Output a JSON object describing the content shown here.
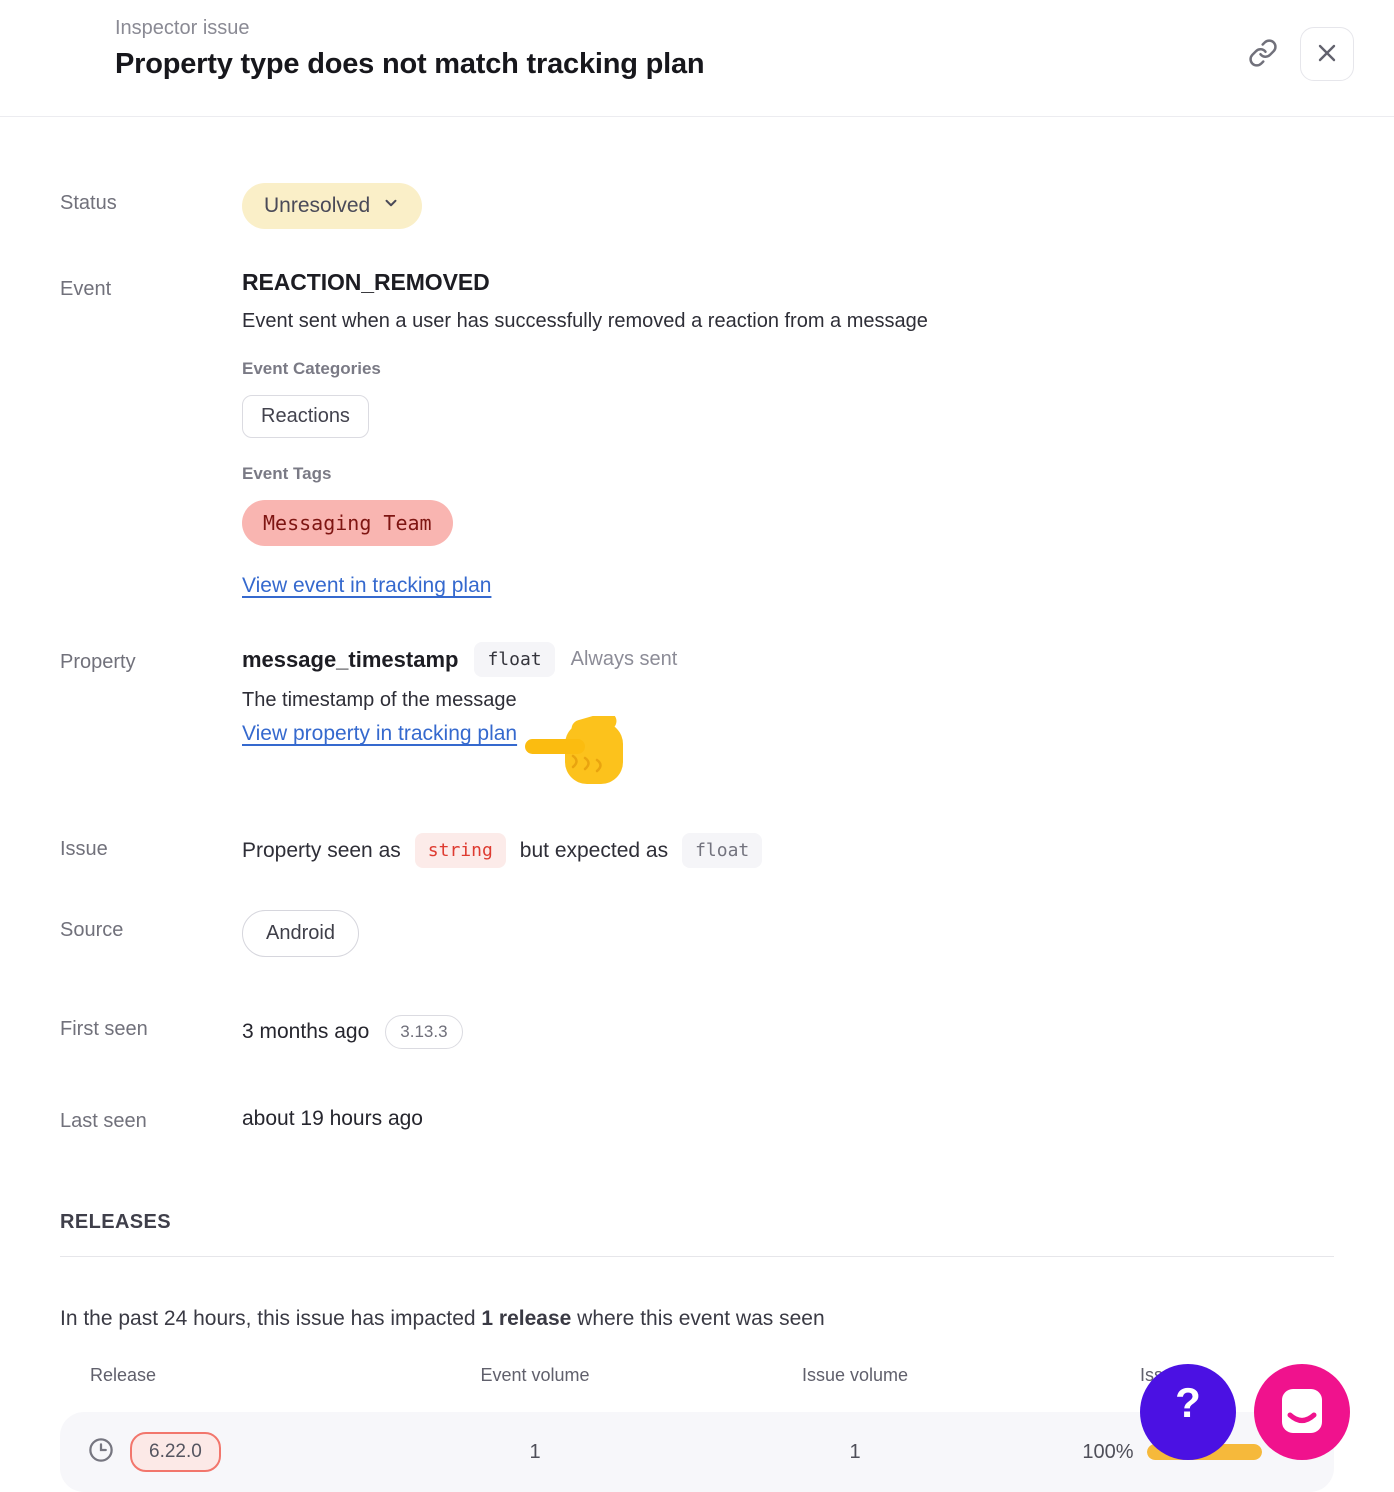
{
  "header": {
    "kicker": "Inspector issue",
    "title": "Property type does not match tracking plan"
  },
  "fields": {
    "status": {
      "label": "Status",
      "value": "Unresolved"
    },
    "event": {
      "label": "Event",
      "name": "REACTION_REMOVED",
      "description": "Event sent when a user has successfully removed a reaction from a message",
      "categories_label": "Event Categories",
      "categories": [
        "Reactions"
      ],
      "tags_label": "Event Tags",
      "tags": [
        "Messaging Team"
      ],
      "link": "View event in tracking plan"
    },
    "property": {
      "label": "Property",
      "name": "message_timestamp",
      "type": "float",
      "presence": "Always sent",
      "description": "The timestamp of the message",
      "link": "View property in tracking plan"
    },
    "issue": {
      "label": "Issue",
      "seen_prefix": "Property seen as",
      "seen_type": "string",
      "expected_prefix": "but expected as",
      "expected_type": "float"
    },
    "source": {
      "label": "Source",
      "value": "Android"
    },
    "first_seen": {
      "label": "First seen",
      "value": "3 months ago",
      "version": "3.13.3"
    },
    "last_seen": {
      "label": "Last seen",
      "value": "about 19 hours ago"
    }
  },
  "releases": {
    "heading": "RELEASES",
    "summary_prefix": "In the past 24 hours, this issue has impacted ",
    "summary_bold": "1 release",
    "summary_suffix": " where this event was seen",
    "table": {
      "columns": [
        "Release",
        "Event volume",
        "Issue volume",
        "Issue %"
      ],
      "rows": [
        {
          "release": "6.22.0",
          "event_volume": "1",
          "issue_volume": "1",
          "issue_pct": "100%",
          "issue_pct_value": 100
        }
      ]
    }
  },
  "fab": {
    "help_label": "?"
  },
  "colors": {
    "status_bg": "#faefc8",
    "tag_bg": "#f9b5b1",
    "tag_text": "#7e1512",
    "string_chip_text": "#de3b31",
    "string_chip_bg": "#fcebe9",
    "issue_bar": "#f6b93b",
    "release_chip_border": "#f2766c",
    "link_blue": "#3569ce",
    "fab_help": "#4b11e3",
    "fab_chat": "#f0128d"
  }
}
